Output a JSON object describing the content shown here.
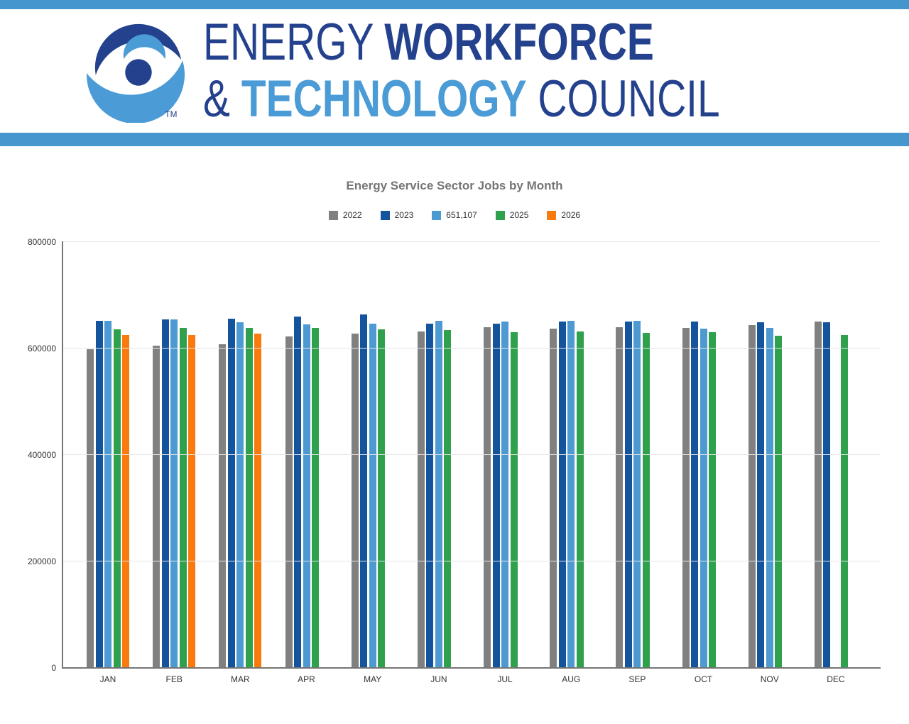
{
  "brand": {
    "energy": "ENERGY",
    "workforce": "WORKFORCE",
    "ampersand": "&",
    "technology": "TECHNOLOGY",
    "council": "COUNCIL",
    "trademark": "TM",
    "colors": {
      "navy": "#24418D",
      "light_blue": "#4B9CD6",
      "accent_bar_blue": "#4596CE"
    }
  },
  "chart_data": {
    "type": "bar",
    "title": "Energy Service Sector Jobs by Month",
    "legend_position": "top",
    "grid": true,
    "ylim": [
      0,
      800000
    ],
    "yticks": [
      0,
      200000,
      400000,
      600000,
      800000
    ],
    "categories": [
      "JAN",
      "FEB",
      "MAR",
      "APR",
      "MAY",
      "JUN",
      "JUL",
      "AUG",
      "SEP",
      "OCT",
      "NOV",
      "DEC"
    ],
    "series": [
      {
        "name": "2022",
        "color": "#808080",
        "values": [
          597800,
          603500,
          606200,
          621300,
          627000,
          630200,
          638200,
          635500,
          638200,
          637700,
          642700,
          649700
        ]
      },
      {
        "name": "2023",
        "color": "#14549C",
        "values": [
          651100,
          652900,
          655100,
          658700,
          663100,
          645300,
          645300,
          649300,
          648900,
          648900,
          648000,
          648400
        ]
      },
      {
        "name": "651,107",
        "color": "#4D9AD3",
        "values": [
          651107,
          652900,
          647600,
          644400,
          646000,
          650200,
          649800,
          651100,
          651100,
          636400,
          637000,
          null
        ]
      },
      {
        "name": "2025",
        "color": "#2FA04C",
        "values": [
          635100,
          637700,
          636900,
          638000,
          634500,
          633300,
          629800,
          630200,
          628400,
          629800,
          623100,
          624400
        ]
      },
      {
        "name": "2026",
        "color": "#F97B10",
        "values": [
          624400,
          623600,
          626200,
          null,
          null,
          null,
          null,
          null,
          null,
          null,
          null,
          null
        ]
      }
    ],
    "colors": {
      "axis": "#757575",
      "grid": "#E5E5E5",
      "tick_text": "#333333",
      "title_text": "#757575"
    }
  }
}
